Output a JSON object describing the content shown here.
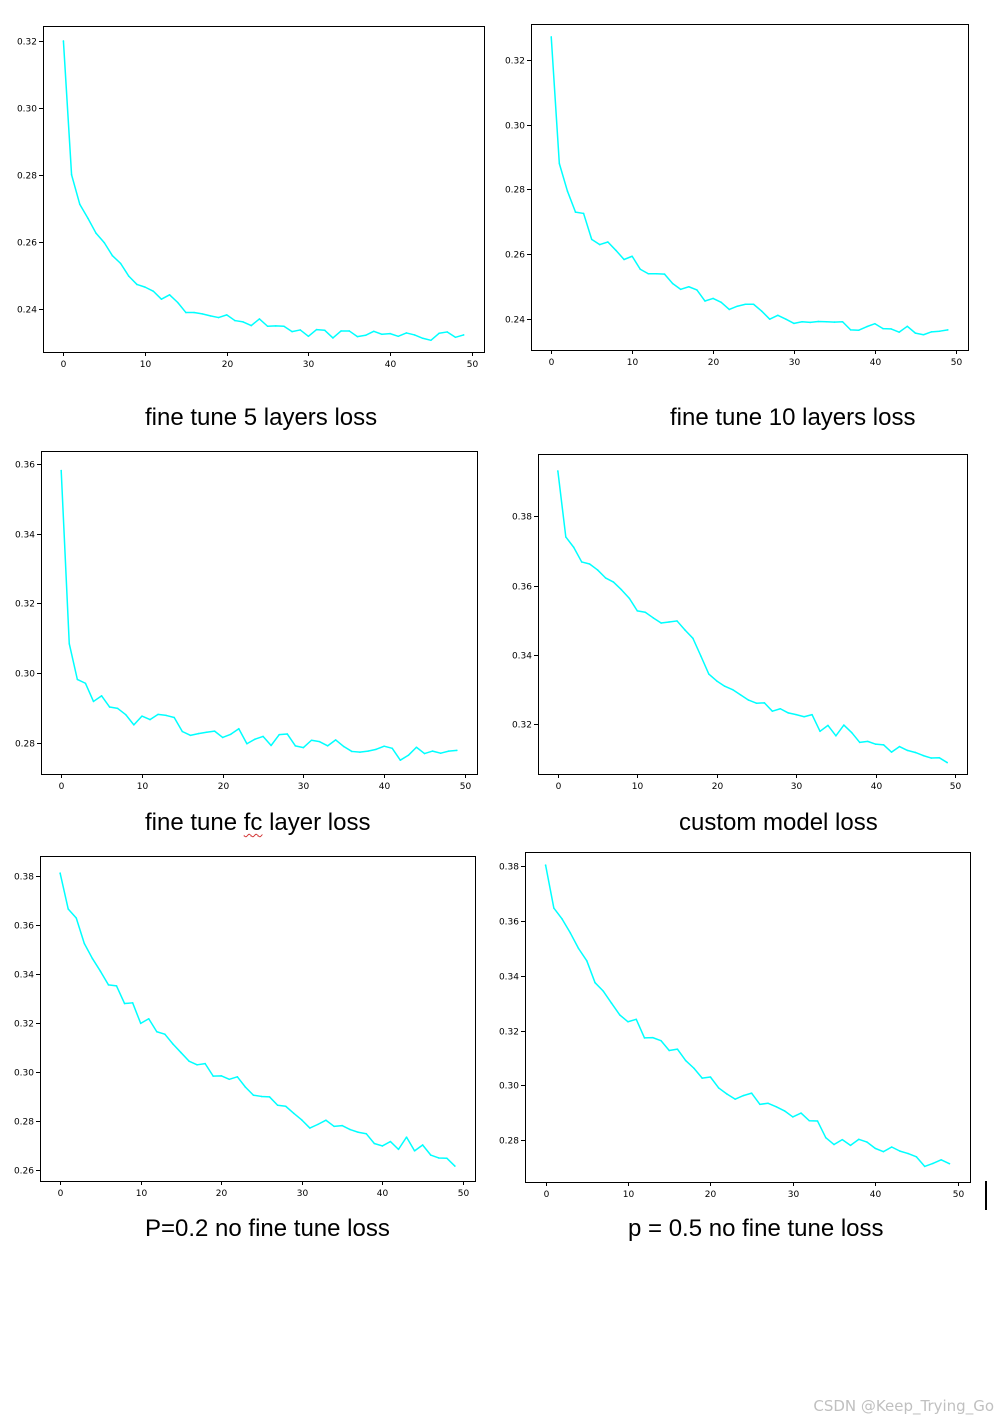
{
  "series_color": "#00ffff",
  "chart_data": [
    {
      "type": "line",
      "title": "fine tune 5 layers loss",
      "xlabel": "",
      "ylabel": "",
      "xlim": [
        -2.5,
        51.5
      ],
      "ylim": [
        0.227,
        0.3245
      ],
      "x_ticks": [
        0,
        10,
        20,
        30,
        40,
        50
      ],
      "y_ticks": [
        0.24,
        0.26,
        0.28,
        0.3,
        0.32
      ],
      "y_tick_labels": [
        "0.24",
        "0.26",
        "0.28",
        "0.30",
        "0.32"
      ],
      "series": [
        {
          "name": "loss",
          "x": [
            0,
            1,
            2,
            3,
            4,
            5,
            6,
            7,
            8,
            9,
            10,
            11,
            12,
            13,
            14,
            15,
            16,
            17,
            18,
            19,
            20,
            21,
            22,
            23,
            24,
            25,
            26,
            27,
            28,
            29,
            30,
            31,
            32,
            33,
            34,
            35,
            36,
            37,
            38,
            39,
            40,
            41,
            42,
            43,
            44,
            45,
            46,
            47,
            48,
            49
          ],
          "values": [
            0.32,
            0.28,
            0.2712,
            0.267,
            0.2625,
            0.2597,
            0.2558,
            0.2535,
            0.2497,
            0.2472,
            0.2464,
            0.2452,
            0.2428,
            0.2441,
            0.2418,
            0.2388,
            0.2388,
            0.2384,
            0.2378,
            0.2373,
            0.2381,
            0.2364,
            0.236,
            0.2349,
            0.2369,
            0.2347,
            0.2348,
            0.2347,
            0.2331,
            0.2336,
            0.2317,
            0.2337,
            0.2335,
            0.2312,
            0.2333,
            0.2333,
            0.2316,
            0.232,
            0.2332,
            0.2323,
            0.2325,
            0.2317,
            0.2327,
            0.2321,
            0.2311,
            0.2305,
            0.2326,
            0.233,
            0.2314,
            0.2321
          ]
        }
      ]
    },
    {
      "type": "line",
      "title": "fine tune 10 layers loss",
      "xlabel": "",
      "ylabel": "",
      "xlim": [
        -2.5,
        51.5
      ],
      "ylim": [
        0.2305,
        0.331
      ],
      "x_ticks": [
        0,
        10,
        20,
        30,
        40,
        50
      ],
      "y_ticks": [
        0.24,
        0.26,
        0.28,
        0.3,
        0.32
      ],
      "y_tick_labels": [
        "0.24",
        "0.26",
        "0.28",
        "0.30",
        "0.32"
      ],
      "series": [
        {
          "name": "loss",
          "x": [
            0,
            1,
            2,
            3,
            4,
            5,
            6,
            7,
            8,
            9,
            10,
            11,
            12,
            13,
            14,
            15,
            16,
            17,
            18,
            19,
            20,
            21,
            22,
            23,
            24,
            25,
            26,
            27,
            28,
            29,
            30,
            31,
            32,
            33,
            34,
            35,
            36,
            37,
            38,
            39,
            40,
            41,
            42,
            43,
            44,
            45,
            46,
            47,
            48,
            49
          ],
          "values": [
            0.327,
            0.288,
            0.2795,
            0.273,
            0.2726,
            0.2646,
            0.263,
            0.2638,
            0.2612,
            0.2584,
            0.2594,
            0.2554,
            0.254,
            0.254,
            0.2539,
            0.251,
            0.2492,
            0.25,
            0.249,
            0.2456,
            0.2464,
            0.2452,
            0.243,
            0.244,
            0.2446,
            0.2446,
            0.2425,
            0.24,
            0.2412,
            0.24,
            0.2387,
            0.2392,
            0.239,
            0.2393,
            0.2392,
            0.2391,
            0.2392,
            0.2367,
            0.2366,
            0.2377,
            0.2386,
            0.2371,
            0.237,
            0.236,
            0.2378,
            0.2357,
            0.2352,
            0.2361,
            0.2363,
            0.2367
          ]
        }
      ]
    },
    {
      "type": "line",
      "title": "fine tune fc layer loss",
      "xlabel": "",
      "ylabel": "",
      "xlim": [
        -2.5,
        51.5
      ],
      "ylim": [
        0.27125,
        0.3636
      ],
      "x_ticks": [
        0,
        10,
        20,
        30,
        40,
        50
      ],
      "y_ticks": [
        0.28,
        0.3,
        0.32,
        0.34,
        0.36
      ],
      "y_tick_labels": [
        "0.28",
        "0.30",
        "0.32",
        "0.34",
        "0.36"
      ],
      "series": [
        {
          "name": "loss",
          "x": [
            0,
            1,
            2,
            3,
            4,
            5,
            6,
            7,
            8,
            9,
            10,
            11,
            12,
            13,
            14,
            15,
            16,
            17,
            18,
            19,
            20,
            21,
            22,
            23,
            24,
            25,
            26,
            27,
            28,
            29,
            30,
            31,
            32,
            33,
            34,
            35,
            36,
            37,
            38,
            39,
            40,
            41,
            42,
            43,
            44,
            45,
            46,
            47,
            48,
            49
          ],
          "values": [
            0.358,
            0.3085,
            0.2983,
            0.2972,
            0.292,
            0.2936,
            0.2904,
            0.29,
            0.2882,
            0.2853,
            0.2878,
            0.2868,
            0.2883,
            0.288,
            0.2874,
            0.2834,
            0.2823,
            0.2828,
            0.2832,
            0.2835,
            0.2817,
            0.2826,
            0.2842,
            0.2799,
            0.2812,
            0.282,
            0.2794,
            0.2825,
            0.2827,
            0.2793,
            0.2788,
            0.2809,
            0.2805,
            0.2793,
            0.281,
            0.2791,
            0.2777,
            0.2775,
            0.2778,
            0.2783,
            0.2792,
            0.2786,
            0.2752,
            0.2766,
            0.2789,
            0.2771,
            0.2778,
            0.2772,
            0.2778,
            0.278
          ]
        }
      ]
    },
    {
      "type": "line",
      "title": "custom model loss",
      "xlabel": "",
      "ylabel": "",
      "xlim": [
        -2.5,
        51.5
      ],
      "ylim": [
        0.3057,
        0.3979
      ],
      "x_ticks": [
        0,
        10,
        20,
        30,
        40,
        50
      ],
      "y_ticks": [
        0.32,
        0.34,
        0.36,
        0.38
      ],
      "y_tick_labels": [
        "0.32",
        "0.34",
        "0.36",
        "0.38"
      ],
      "series": [
        {
          "name": "loss",
          "x": [
            0,
            1,
            2,
            3,
            4,
            5,
            6,
            7,
            8,
            9,
            10,
            11,
            12,
            13,
            14,
            15,
            16,
            17,
            18,
            19,
            20,
            21,
            22,
            23,
            24,
            25,
            26,
            27,
            28,
            29,
            30,
            31,
            32,
            33,
            34,
            35,
            36,
            37,
            38,
            39,
            40,
            41,
            42,
            43,
            44,
            45,
            46,
            47,
            48,
            49
          ],
          "values": [
            0.393,
            0.374,
            0.371,
            0.3668,
            0.3662,
            0.3645,
            0.3622,
            0.361,
            0.3588,
            0.3563,
            0.3527,
            0.3523,
            0.3507,
            0.3492,
            0.3495,
            0.3498,
            0.3472,
            0.3448,
            0.3397,
            0.3345,
            0.3325,
            0.331,
            0.33,
            0.3285,
            0.327,
            0.3261,
            0.3262,
            0.3238,
            0.3245,
            0.3233,
            0.3228,
            0.3222,
            0.3228,
            0.318,
            0.3197,
            0.3167,
            0.3198,
            0.3176,
            0.3148,
            0.3151,
            0.3143,
            0.3141,
            0.312,
            0.3136,
            0.3125,
            0.3119,
            0.311,
            0.3103,
            0.3104,
            0.309
          ]
        }
      ]
    },
    {
      "type": "line",
      "title": "P=0.2 no fine tune loss",
      "xlabel": "",
      "ylabel": "",
      "xlim": [
        -2.5,
        51.5
      ],
      "ylim": [
        0.2557,
        0.3883
      ],
      "x_ticks": [
        0,
        10,
        20,
        30,
        40,
        50
      ],
      "y_ticks": [
        0.26,
        0.28,
        0.3,
        0.32,
        0.34,
        0.36,
        0.38
      ],
      "y_tick_labels": [
        "0.26",
        "0.28",
        "0.30",
        "0.32",
        "0.34",
        "0.36",
        "0.38"
      ],
      "series": [
        {
          "name": "loss",
          "x": [
            0,
            1,
            2,
            3,
            4,
            5,
            6,
            7,
            8,
            9,
            10,
            11,
            12,
            13,
            14,
            15,
            16,
            17,
            18,
            19,
            20,
            21,
            22,
            23,
            24,
            25,
            26,
            27,
            28,
            29,
            30,
            31,
            32,
            33,
            34,
            35,
            36,
            37,
            38,
            39,
            40,
            41,
            42,
            43,
            44,
            45,
            46,
            47,
            48,
            49
          ],
          "values": [
            0.3813,
            0.3667,
            0.363,
            0.3526,
            0.3465,
            0.3413,
            0.3357,
            0.3353,
            0.3281,
            0.3284,
            0.32,
            0.3219,
            0.3166,
            0.3156,
            0.3116,
            0.3081,
            0.3046,
            0.3031,
            0.3036,
            0.2985,
            0.2986,
            0.2972,
            0.2982,
            0.294,
            0.2907,
            0.2902,
            0.29,
            0.2866,
            0.2862,
            0.2833,
            0.2806,
            0.2773,
            0.2788,
            0.2805,
            0.278,
            0.2783,
            0.2767,
            0.2756,
            0.275,
            0.271,
            0.27,
            0.2718,
            0.2686,
            0.2736,
            0.268,
            0.2704,
            0.2663,
            0.2651,
            0.265,
            0.2618
          ]
        }
      ]
    },
    {
      "type": "line",
      "title": "p = 0.5 no fine tune loss",
      "xlabel": "",
      "ylabel": "",
      "xlim": [
        -2.5,
        51.5
      ],
      "ylim": [
        0.2646,
        0.3853
      ],
      "x_ticks": [
        0,
        10,
        20,
        30,
        40,
        50
      ],
      "y_ticks": [
        0.28,
        0.3,
        0.32,
        0.34,
        0.36,
        0.38
      ],
      "y_tick_labels": [
        "0.28",
        "0.30",
        "0.32",
        "0.34",
        "0.36",
        "0.38"
      ],
      "series": [
        {
          "name": "loss",
          "x": [
            0,
            1,
            2,
            3,
            4,
            5,
            6,
            7,
            8,
            9,
            10,
            11,
            12,
            13,
            14,
            15,
            16,
            17,
            18,
            19,
            20,
            21,
            22,
            23,
            24,
            25,
            26,
            27,
            28,
            29,
            30,
            31,
            32,
            33,
            34,
            35,
            36,
            37,
            38,
            39,
            40,
            41,
            42,
            43,
            44,
            45,
            46,
            47,
            48,
            49
          ],
          "values": [
            0.3805,
            0.3648,
            0.3608,
            0.3557,
            0.35,
            0.3455,
            0.3375,
            0.3344,
            0.33,
            0.3257,
            0.3232,
            0.3241,
            0.3173,
            0.3174,
            0.3163,
            0.3127,
            0.3132,
            0.309,
            0.3062,
            0.3026,
            0.303,
            0.299,
            0.2968,
            0.2949,
            0.2962,
            0.2971,
            0.293,
            0.2934,
            0.2921,
            0.2906,
            0.2884,
            0.2898,
            0.287,
            0.2869,
            0.2808,
            0.2783,
            0.2801,
            0.278,
            0.2802,
            0.2792,
            0.2769,
            0.2757,
            0.2774,
            0.2759,
            0.275,
            0.2738,
            0.2703,
            0.2714,
            0.2727,
            0.2713
          ]
        }
      ]
    }
  ],
  "captions": {
    "c1": "fine tune 5 layers loss",
    "c2": "fine tune 10 layers loss",
    "c3_before": "fine tune ",
    "c3_marked": "fc",
    "c3_after": " layer loss",
    "c4": "custom model loss",
    "c5": "P=0.2 no fine tune loss",
    "c6": "p = 0.5 no fine tune loss"
  },
  "watermark": "CSDN @Keep_Trying_Go"
}
